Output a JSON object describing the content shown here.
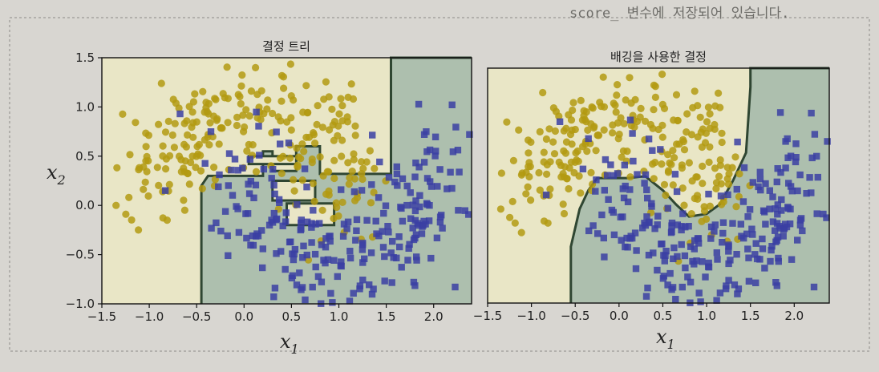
{
  "page": {
    "top_caption": "score_ 변수에 저장되어 있습니다.",
    "bottom_caption": ""
  },
  "colors": {
    "page_background": "#d8d6d1",
    "region_class0": "#e9e6c6",
    "region_class1": "#adbfae",
    "class0_marker": "#b39a12",
    "class1_marker": "#3b3fa3",
    "boundary": "#2f4632"
  },
  "chart_data": [
    {
      "type": "scatter",
      "title": "결정 트리",
      "xlabel": "x",
      "xlabel_sub": "1",
      "ylabel": "x",
      "ylabel_sub": "2",
      "xlim": [
        -1.5,
        2.4
      ],
      "ylim": [
        -1.0,
        1.5
      ],
      "xticks": [
        "−1.5",
        "−1.0",
        "−0.5",
        "0.0",
        "0.5",
        "1.0",
        "1.5",
        "2.0"
      ],
      "xtick_values": [
        -1.5,
        -1.0,
        -0.5,
        0.0,
        0.5,
        1.0,
        1.5,
        2.0
      ],
      "yticks": [
        "1.5",
        "1.0",
        "0.5",
        "0.0",
        "−0.5",
        "−1.0"
      ],
      "ytick_values": [
        1.5,
        1.0,
        0.5,
        0.0,
        -0.5,
        -1.0
      ],
      "series": [
        {
          "marker": "circle",
          "color": "#b39a12",
          "count": 250
        },
        {
          "marker": "square",
          "color": "#3b3fa3",
          "count": 250
        }
      ],
      "decision_regions": "single decision tree: class-0 region on left and upper area, jagged overfit boundary around the overlap near x1 0.2–1.2",
      "grid": false,
      "legend": "none"
    },
    {
      "type": "scatter",
      "title": "배깅을 사용한 결정",
      "xlabel": "x",
      "xlabel_sub": "1",
      "ylabel": "",
      "xlim": [
        -1.5,
        2.4
      ],
      "ylim": [
        -1.0,
        1.5
      ],
      "xticks": [
        "−1.5",
        "−1.0",
        "−0.5",
        "0.0",
        "0.5",
        "1.0",
        "1.5",
        "2.0"
      ],
      "xtick_values": [
        -1.5,
        -1.0,
        -0.5,
        0.0,
        0.5,
        1.0,
        1.5,
        2.0
      ],
      "yticks": [],
      "series": [
        {
          "marker": "circle",
          "color": "#b39a12",
          "count": 250
        },
        {
          "marker": "square",
          "color": "#3b3fa3",
          "count": 250
        }
      ],
      "decision_regions": "bagging ensemble of 500 trees: smoother moon-shaped boundary",
      "grid": false,
      "legend": "none"
    }
  ]
}
